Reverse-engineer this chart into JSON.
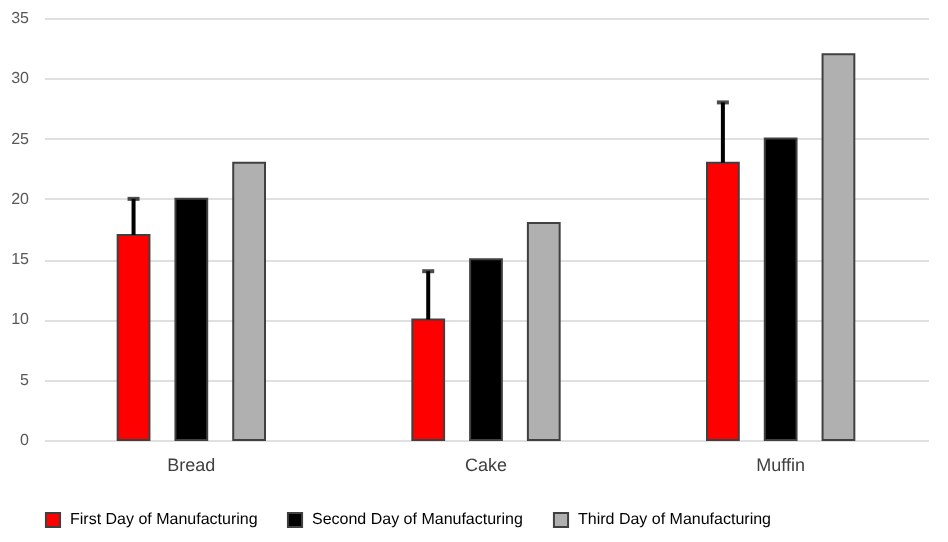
{
  "chart_data": {
    "type": "bar",
    "categories": [
      "Bread",
      "Cake",
      "Muffin"
    ],
    "series": [
      {
        "name": "First Day of Manufacturing",
        "color": "#ff0000",
        "values": [
          17,
          10,
          23
        ],
        "errors": [
          [
            17,
            20
          ],
          [
            10,
            14
          ],
          [
            23,
            28
          ]
        ]
      },
      {
        "name": "Second Day of Manufacturing",
        "color": "#000000",
        "values": [
          20,
          15,
          25
        ]
      },
      {
        "name": "Third Day of Manufacturing",
        "color": "#b0b0b0",
        "values": [
          23,
          18,
          32
        ]
      }
    ],
    "ylim": [
      0,
      35
    ],
    "yticks": [
      0,
      5,
      10,
      15,
      20,
      25,
      30,
      35
    ],
    "grid": "y",
    "legend": "bottom"
  }
}
